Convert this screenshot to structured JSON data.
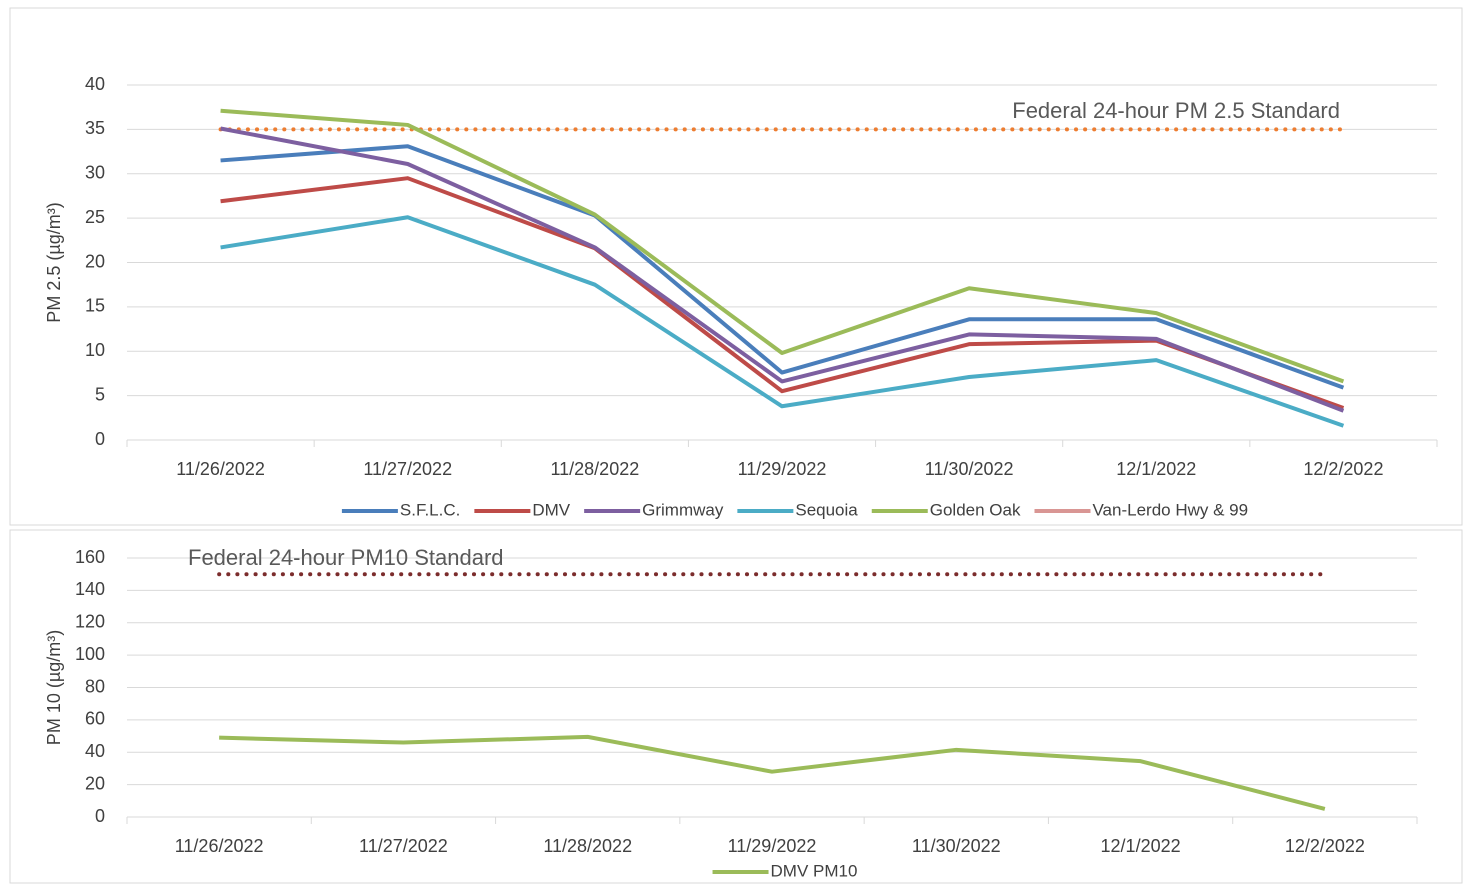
{
  "chart_data": [
    {
      "type": "line",
      "y_label": "PM 2.5 (µg/m³)",
      "categories": [
        "11/26/2022",
        "11/27/2022",
        "11/28/2022",
        "11/29/2022",
        "11/30/2022",
        "12/1/2022",
        "12/2/2022"
      ],
      "series": [
        {
          "name": "S.F.L.C.",
          "color": "#4a7ebb",
          "values": [
            31.5,
            33.1,
            25.3,
            7.6,
            13.6,
            13.6,
            5.9
          ]
        },
        {
          "name": "DMV",
          "color": "#be4b48",
          "values": [
            26.9,
            29.5,
            21.6,
            5.5,
            10.8,
            11.2,
            3.6
          ]
        },
        {
          "name": "Grimmway",
          "color": "#7d5fa0",
          "values": [
            35.1,
            31.1,
            21.7,
            6.6,
            11.9,
            11.4,
            3.3
          ]
        },
        {
          "name": "Sequoia",
          "color": "#4bacc6",
          "values": [
            21.7,
            25.1,
            17.5,
            3.8,
            7.1,
            9.0,
            1.6
          ]
        },
        {
          "name": "Golden Oak",
          "color": "#9bbb59",
          "values": [
            37.1,
            35.5,
            25.4,
            9.8,
            17.1,
            14.3,
            6.6
          ]
        },
        {
          "name": "Van-Lerdo Hwy & 99",
          "color": "#d99694",
          "values": [
            null,
            null,
            null,
            null,
            null,
            null,
            null
          ]
        }
      ],
      "reference": {
        "label": "Federal 24-hour PM 2.5 Standard",
        "color": "#ed7d31",
        "values": [
          35,
          35,
          35,
          35,
          35,
          35,
          35
        ]
      },
      "ylim": [
        0,
        40
      ],
      "yticks": [
        0,
        5,
        10,
        15,
        20,
        25,
        30,
        35,
        40
      ],
      "grid": true,
      "legend": "bottom"
    },
    {
      "type": "line",
      "y_label": "PM 10 (µg/m³)",
      "categories": [
        "11/26/2022",
        "11/27/2022",
        "11/28/2022",
        "11/29/2022",
        "11/30/2022",
        "12/1/2022",
        "12/2/2022"
      ],
      "series": [
        {
          "name": "DMV PM10",
          "color": "#9bbb59",
          "values": [
            49,
            46,
            49.5,
            28,
            41.5,
            34.5,
            5
          ]
        }
      ],
      "reference": {
        "label": "Federal 24-hour PM10 Standard",
        "color": "#7b2c2c",
        "values": [
          150,
          150,
          150,
          150,
          150,
          150,
          150
        ]
      },
      "ylim": [
        0,
        160
      ],
      "yticks": [
        0,
        20,
        40,
        60,
        80,
        100,
        120,
        140,
        160
      ],
      "grid": true,
      "legend": "bottom"
    }
  ]
}
